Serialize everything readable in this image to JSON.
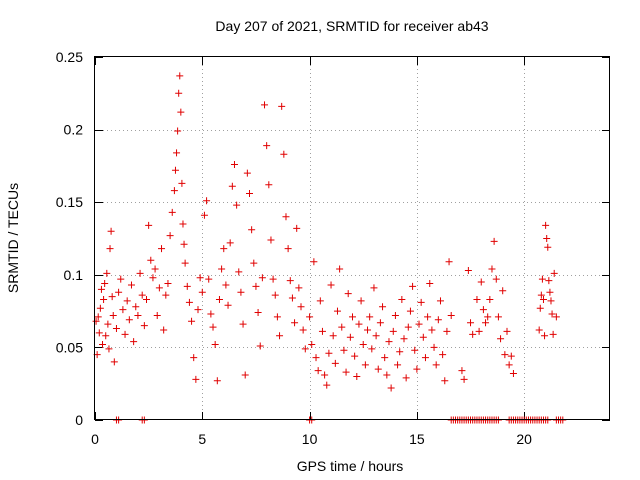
{
  "chart_data": {
    "type": "scatter",
    "title": "Day 207 of 2021, SRMTID for receiver ab43",
    "xlabel": "GPS time / hours",
    "ylabel": "SRMTID / TECUs",
    "xlim": [
      0,
      24
    ],
    "ylim": [
      0,
      0.25
    ],
    "xticks": [
      0,
      5,
      10,
      15,
      20
    ],
    "xtick_labels": [
      "0",
      "5",
      "10",
      "15",
      "20"
    ],
    "yticks": [
      0,
      0.05,
      0.1,
      0.15,
      0.2,
      0.25
    ],
    "ytick_labels": [
      "0",
      "0.05",
      "0.1",
      "0.15",
      "0.2",
      "0.25"
    ],
    "grid": true,
    "marker": "+",
    "color": "#e00000",
    "series": [
      {
        "name": "SRMTID",
        "points": [
          [
            0.05,
            0.068
          ],
          [
            0.1,
            0.045
          ],
          [
            0.15,
            0.071
          ],
          [
            0.2,
            0.06
          ],
          [
            0.25,
            0.077
          ],
          [
            0.3,
            0.09
          ],
          [
            0.35,
            0.052
          ],
          [
            0.4,
            0.083
          ],
          [
            0.45,
            0.094
          ],
          [
            0.5,
            0.058
          ],
          [
            0.55,
            0.101
          ],
          [
            0.6,
            0.066
          ],
          [
            0.65,
            0.049
          ],
          [
            0.7,
            0.118
          ],
          [
            0.75,
            0.13
          ],
          [
            0.8,
            0.085
          ],
          [
            0.85,
            0.072
          ],
          [
            0.9,
            0.04
          ],
          [
            1.0,
            0.063
          ],
          [
            1.1,
            0.088
          ],
          [
            1.2,
            0.097
          ],
          [
            1.3,
            0.076
          ],
          [
            1.4,
            0.059
          ],
          [
            1.5,
            0.082
          ],
          [
            1.6,
            0.069
          ],
          [
            1.7,
            0.093
          ],
          [
            1.8,
            0.054
          ],
          [
            1.9,
            0.078
          ],
          [
            2.0,
            0.072
          ],
          [
            2.1,
            0.101
          ],
          [
            2.2,
            0.086
          ],
          [
            2.3,
            0.065
          ],
          [
            2.4,
            0.083
          ],
          [
            2.5,
            0.134
          ],
          [
            2.6,
            0.11
          ],
          [
            2.7,
            0.098
          ],
          [
            2.8,
            0.104
          ],
          [
            2.9,
            0.072
          ],
          [
            3.0,
            0.091
          ],
          [
            3.1,
            0.118
          ],
          [
            3.2,
            0.062
          ],
          [
            3.3,
            0.086
          ],
          [
            3.4,
            0.094
          ],
          [
            3.5,
            0.127
          ],
          [
            3.6,
            0.143
          ],
          [
            3.7,
            0.158
          ],
          [
            3.75,
            0.172
          ],
          [
            3.8,
            0.184
          ],
          [
            3.85,
            0.199
          ],
          [
            3.9,
            0.225
          ],
          [
            3.95,
            0.237
          ],
          [
            4.0,
            0.212
          ],
          [
            4.05,
            0.163
          ],
          [
            4.1,
            0.135
          ],
          [
            4.15,
            0.121
          ],
          [
            4.2,
            0.108
          ],
          [
            4.3,
            0.092
          ],
          [
            4.4,
            0.081
          ],
          [
            4.5,
            0.068
          ],
          [
            4.6,
            0.043
          ],
          [
            4.7,
            0.028
          ],
          [
            4.8,
            0.076
          ],
          [
            4.9,
            0.098
          ],
          [
            5.0,
            0.088
          ],
          [
            5.1,
            0.141
          ],
          [
            5.2,
            0.151
          ],
          [
            5.3,
            0.097
          ],
          [
            5.4,
            0.073
          ],
          [
            5.5,
            0.064
          ],
          [
            5.6,
            0.052
          ],
          [
            5.7,
            0.027
          ],
          [
            5.8,
            0.083
          ],
          [
            5.9,
            0.104
          ],
          [
            6.0,
            0.118
          ],
          [
            6.1,
            0.093
          ],
          [
            6.2,
            0.079
          ],
          [
            6.3,
            0.122
          ],
          [
            6.4,
            0.161
          ],
          [
            6.5,
            0.176
          ],
          [
            6.6,
            0.148
          ],
          [
            6.7,
            0.102
          ],
          [
            6.8,
            0.088
          ],
          [
            6.9,
            0.066
          ],
          [
            7.0,
            0.031
          ],
          [
            7.1,
            0.17
          ],
          [
            7.2,
            0.156
          ],
          [
            7.3,
            0.131
          ],
          [
            7.4,
            0.108
          ],
          [
            7.5,
            0.092
          ],
          [
            7.6,
            0.074
          ],
          [
            7.7,
            0.051
          ],
          [
            7.8,
            0.098
          ],
          [
            7.9,
            0.217
          ],
          [
            8.0,
            0.189
          ],
          [
            8.1,
            0.162
          ],
          [
            8.2,
            0.124
          ],
          [
            8.3,
            0.097
          ],
          [
            8.4,
            0.086
          ],
          [
            8.5,
            0.071
          ],
          [
            8.6,
            0.058
          ],
          [
            8.7,
            0.216
          ],
          [
            8.8,
            0.183
          ],
          [
            8.9,
            0.14
          ],
          [
            9.0,
            0.118
          ],
          [
            9.1,
            0.096
          ],
          [
            9.2,
            0.084
          ],
          [
            9.3,
            0.067
          ],
          [
            9.4,
            0.132
          ],
          [
            9.5,
            0.091
          ],
          [
            9.6,
            0.078
          ],
          [
            9.7,
            0.062
          ],
          [
            9.8,
            0.049
          ],
          [
            10.0,
            0.071
          ],
          [
            10.1,
            0.052
          ],
          [
            10.2,
            0.109
          ],
          [
            10.3,
            0.043
          ],
          [
            10.4,
            0.034
          ],
          [
            10.5,
            0.082
          ],
          [
            10.6,
            0.061
          ],
          [
            10.7,
            0.031
          ],
          [
            10.8,
            0.024
          ],
          [
            10.9,
            0.046
          ],
          [
            11.0,
            0.093
          ],
          [
            11.1,
            0.058
          ],
          [
            11.2,
            0.039
          ],
          [
            11.3,
            0.075
          ],
          [
            11.4,
            0.104
          ],
          [
            11.5,
            0.064
          ],
          [
            11.6,
            0.048
          ],
          [
            11.7,
            0.033
          ],
          [
            11.8,
            0.087
          ],
          [
            11.9,
            0.057
          ],
          [
            12.0,
            0.071
          ],
          [
            12.1,
            0.044
          ],
          [
            12.2,
            0.03
          ],
          [
            12.3,
            0.066
          ],
          [
            12.4,
            0.082
          ],
          [
            12.5,
            0.052
          ],
          [
            12.6,
            0.038
          ],
          [
            12.7,
            0.062
          ],
          [
            12.8,
            0.071
          ],
          [
            12.9,
            0.049
          ],
          [
            13.0,
            0.091
          ],
          [
            13.1,
            0.058
          ],
          [
            13.2,
            0.035
          ],
          [
            13.3,
            0.067
          ],
          [
            13.4,
            0.078
          ],
          [
            13.5,
            0.043
          ],
          [
            13.6,
            0.031
          ],
          [
            13.7,
            0.054
          ],
          [
            13.8,
            0.022
          ],
          [
            13.9,
            0.061
          ],
          [
            14.0,
            0.072
          ],
          [
            14.1,
            0.038
          ],
          [
            14.2,
            0.047
          ],
          [
            14.3,
            0.083
          ],
          [
            14.4,
            0.056
          ],
          [
            14.5,
            0.029
          ],
          [
            14.6,
            0.064
          ],
          [
            14.7,
            0.075
          ],
          [
            14.8,
            0.092
          ],
          [
            14.9,
            0.048
          ],
          [
            15.0,
            0.035
          ],
          [
            15.1,
            0.066
          ],
          [
            15.2,
            0.081
          ],
          [
            15.3,
            0.057
          ],
          [
            15.4,
            0.043
          ],
          [
            15.5,
            0.071
          ],
          [
            15.6,
            0.094
          ],
          [
            15.7,
            0.062
          ],
          [
            15.8,
            0.05
          ],
          [
            15.9,
            0.038
          ],
          [
            16.0,
            0.069
          ],
          [
            16.1,
            0.082
          ],
          [
            16.2,
            0.045
          ],
          [
            16.3,
            0.027
          ],
          [
            16.4,
            0.061
          ],
          [
            16.5,
            0.109
          ],
          [
            16.6,
            0.072
          ],
          [
            17.1,
            0.034
          ],
          [
            17.2,
            0.028
          ],
          [
            17.4,
            0.103
          ],
          [
            17.5,
            0.067
          ],
          [
            17.6,
            0.059
          ],
          [
            17.8,
            0.083
          ],
          [
            17.9,
            0.061
          ],
          [
            18.0,
            0.095
          ],
          [
            18.1,
            0.076
          ],
          [
            18.2,
            0.067
          ],
          [
            18.3,
            0.071
          ],
          [
            18.4,
            0.083
          ],
          [
            18.5,
            0.104
          ],
          [
            18.6,
            0.123
          ],
          [
            18.7,
            0.097
          ],
          [
            18.8,
            0.071
          ],
          [
            18.9,
            0.056
          ],
          [
            19.0,
            0.089
          ],
          [
            19.1,
            0.045
          ],
          [
            19.2,
            0.061
          ],
          [
            19.3,
            0.038
          ],
          [
            19.4,
            0.044
          ],
          [
            19.5,
            0.032
          ],
          [
            20.7,
            0.062
          ],
          [
            20.75,
            0.077
          ],
          [
            20.8,
            0.086
          ],
          [
            20.85,
            0.097
          ],
          [
            20.9,
            0.083
          ],
          [
            20.95,
            0.058
          ],
          [
            21.0,
            0.134
          ],
          [
            21.05,
            0.125
          ],
          [
            21.1,
            0.119
          ],
          [
            21.15,
            0.096
          ],
          [
            21.2,
            0.088
          ],
          [
            21.25,
            0.082
          ],
          [
            21.3,
            0.073
          ],
          [
            21.35,
            0.059
          ],
          [
            21.4,
            0.101
          ],
          [
            21.5,
            0.071
          ],
          [
            1.0,
            0
          ],
          [
            1.1,
            0
          ],
          [
            2.2,
            0
          ],
          [
            2.3,
            0
          ],
          [
            10.0,
            0
          ],
          [
            10.1,
            0
          ],
          [
            16.6,
            0
          ],
          [
            16.7,
            0
          ],
          [
            16.8,
            0
          ],
          [
            16.9,
            0
          ],
          [
            17.0,
            0
          ],
          [
            17.1,
            0
          ],
          [
            17.2,
            0
          ],
          [
            17.3,
            0
          ],
          [
            17.4,
            0
          ],
          [
            17.5,
            0
          ],
          [
            17.6,
            0
          ],
          [
            17.7,
            0
          ],
          [
            17.8,
            0
          ],
          [
            17.9,
            0
          ],
          [
            18.0,
            0
          ],
          [
            18.1,
            0
          ],
          [
            18.2,
            0
          ],
          [
            18.3,
            0
          ],
          [
            18.4,
            0
          ],
          [
            18.5,
            0
          ],
          [
            18.6,
            0
          ],
          [
            18.7,
            0
          ],
          [
            18.8,
            0
          ],
          [
            19.3,
            0
          ],
          [
            19.4,
            0
          ],
          [
            19.5,
            0
          ],
          [
            19.6,
            0
          ],
          [
            19.7,
            0
          ],
          [
            19.8,
            0
          ],
          [
            19.9,
            0
          ],
          [
            20.0,
            0
          ],
          [
            20.1,
            0
          ],
          [
            20.2,
            0
          ],
          [
            20.3,
            0
          ],
          [
            20.4,
            0
          ],
          [
            20.5,
            0
          ],
          [
            20.6,
            0
          ],
          [
            20.7,
            0
          ],
          [
            20.8,
            0
          ],
          [
            20.9,
            0
          ],
          [
            21.0,
            0
          ],
          [
            21.1,
            0
          ],
          [
            21.5,
            0
          ],
          [
            21.6,
            0
          ],
          [
            21.7,
            0
          ],
          [
            21.8,
            0
          ]
        ]
      }
    ]
  }
}
